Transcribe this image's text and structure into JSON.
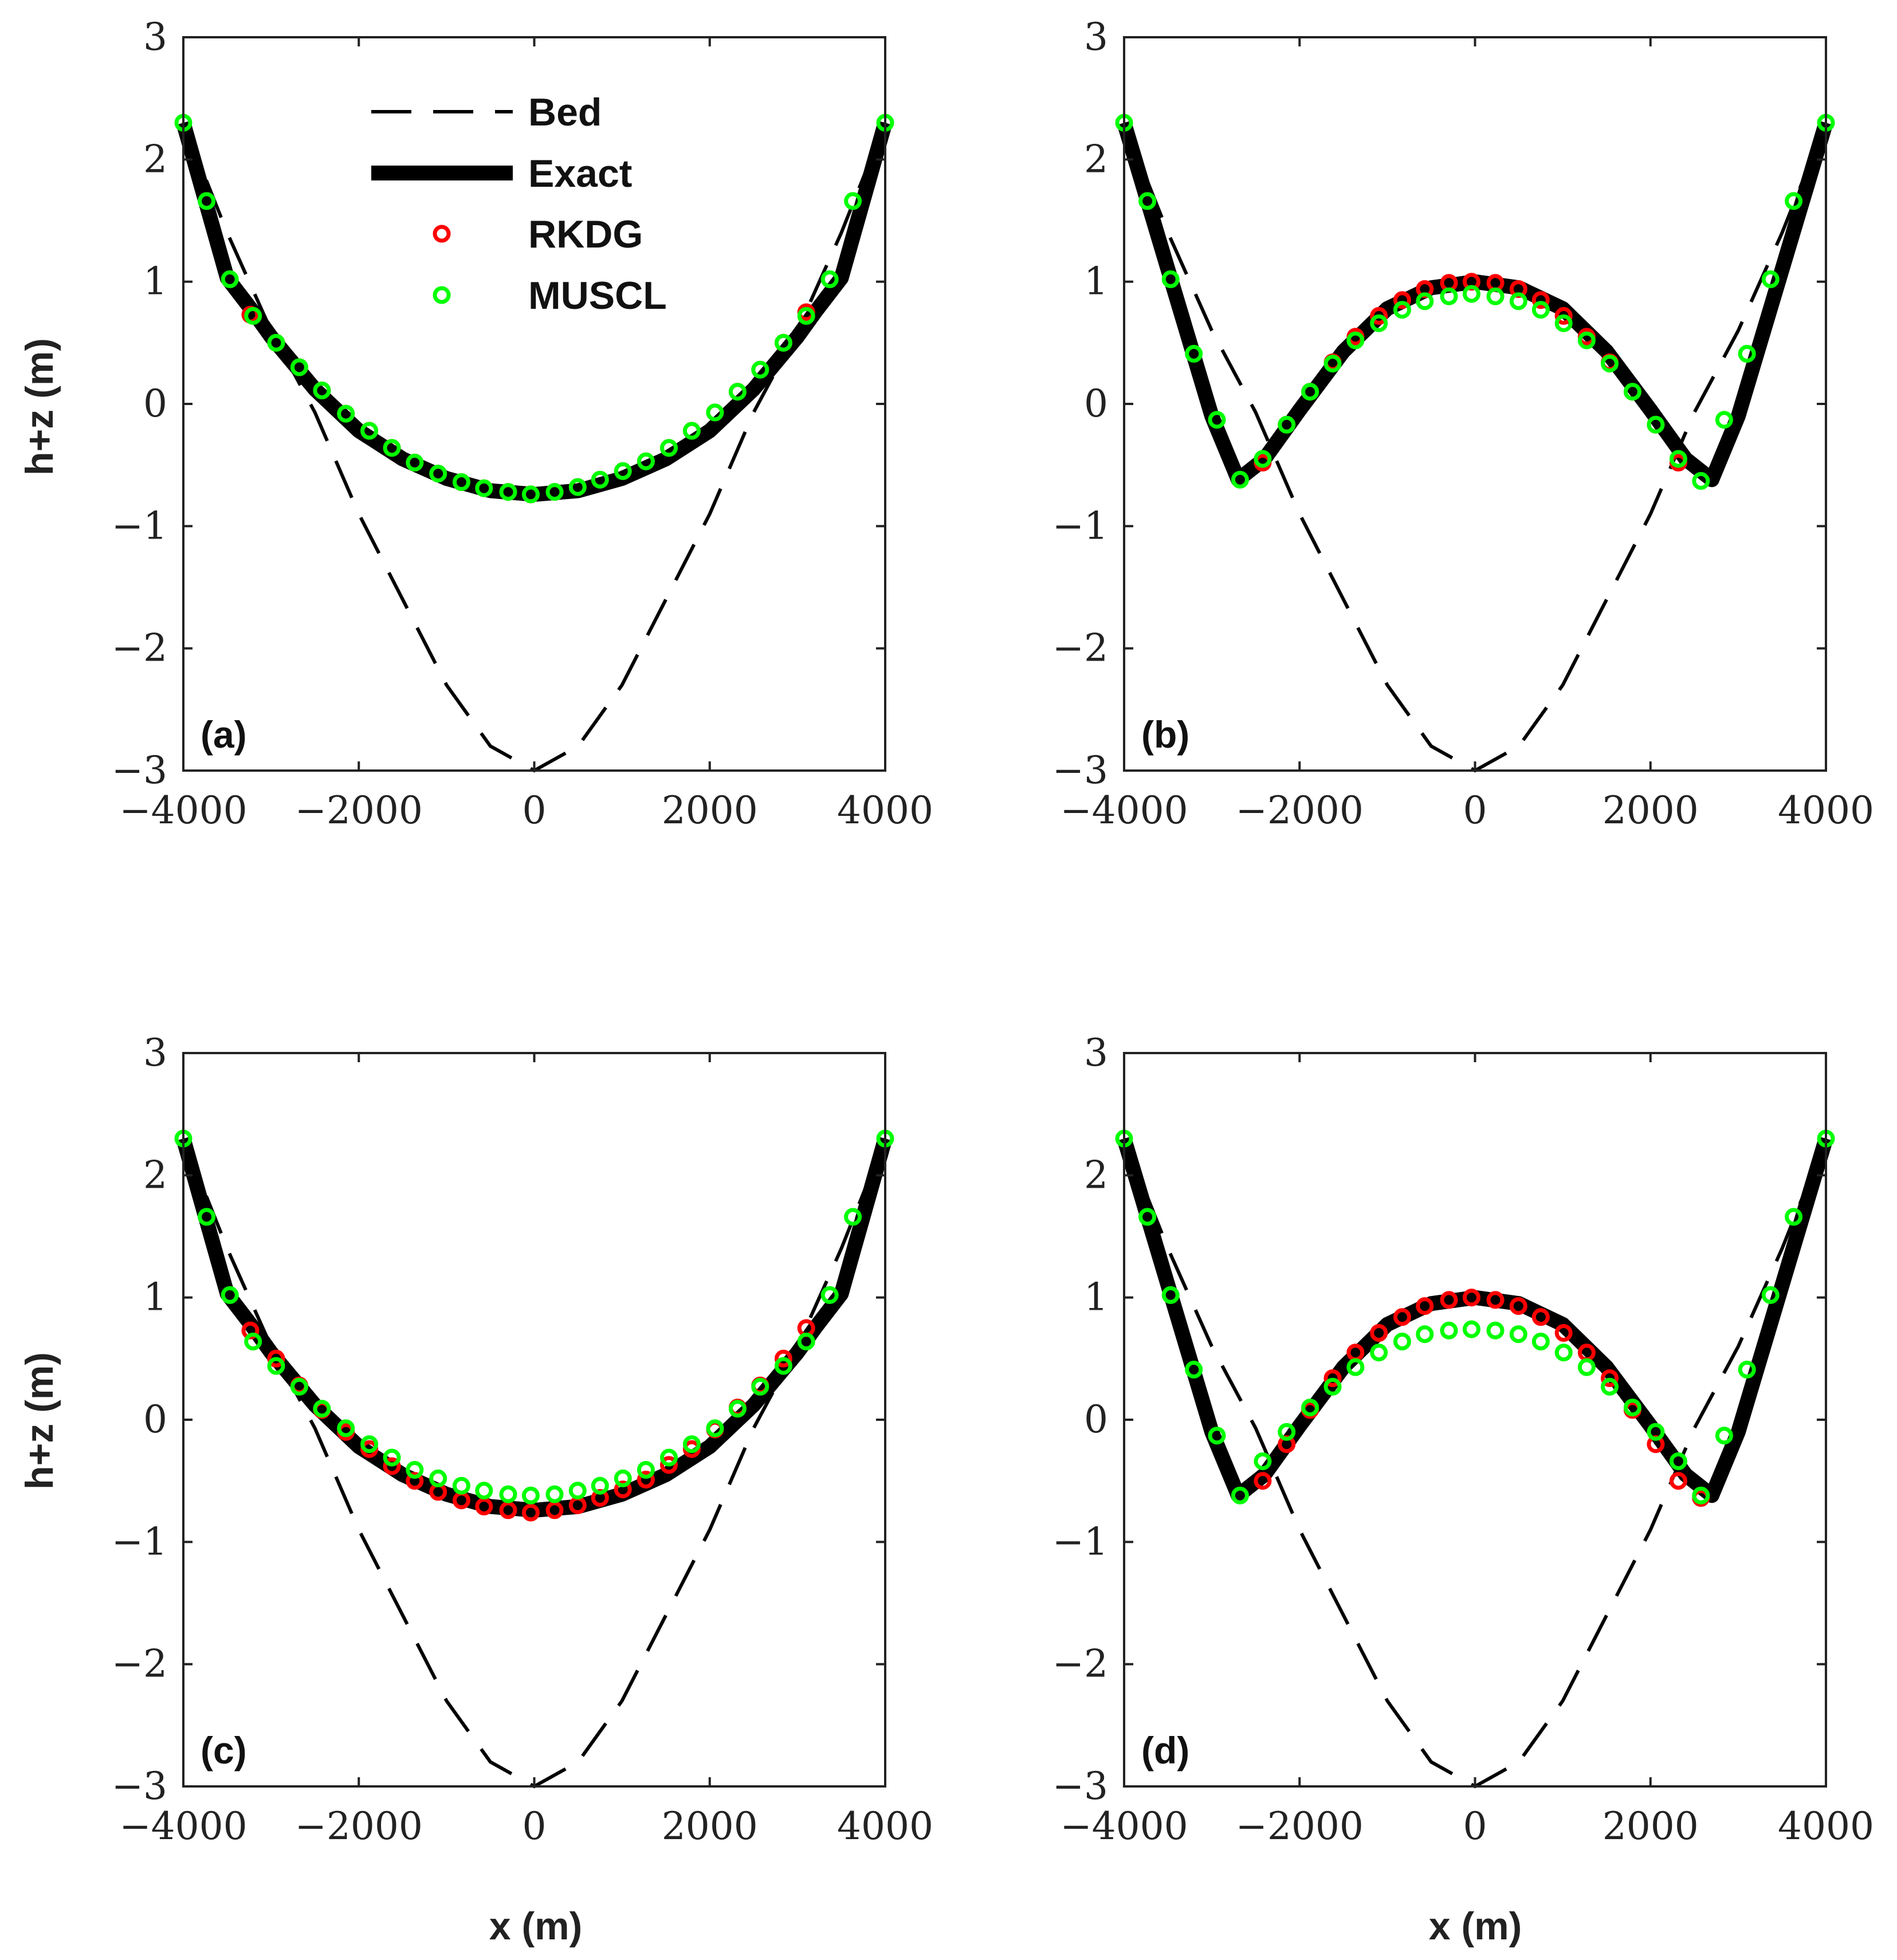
{
  "figure": {
    "xlabel": "x (m)",
    "ylabel": "h+z (m)"
  },
  "legend": {
    "items": [
      {
        "key": "bed",
        "label": "Bed"
      },
      {
        "key": "exact",
        "label": "Exact"
      },
      {
        "key": "rkdg",
        "label": "RKDG"
      },
      {
        "key": "muscl",
        "label": "MUSCL"
      }
    ]
  },
  "colors": {
    "bed": "#000000",
    "exact": "#000000",
    "rkdg": "#ff0000",
    "muscl": "#00ff00"
  },
  "chart_data": [
    {
      "type": "line",
      "panel": "(a)",
      "xlim": [
        -4000,
        4000
      ],
      "ylim": [
        -3,
        3
      ],
      "xticks": [
        -4000,
        -2000,
        0,
        2000,
        4000
      ],
      "yticks": [
        -3,
        -2,
        -1,
        0,
        1,
        2,
        3
      ],
      "series": [
        {
          "name": "Bed",
          "x": [
            -4000,
            -3500,
            -3000,
            -2500,
            -2000,
            -1500,
            -1000,
            -500,
            0,
            500,
            1000,
            1500,
            2000,
            2500,
            3000,
            3500,
            4000
          ],
          "y": [
            2.3,
            1.4,
            0.6,
            -0.07,
            -0.9,
            -1.6,
            -2.3,
            -2.8,
            -3.0,
            -2.8,
            -2.3,
            -1.6,
            -0.9,
            -0.07,
            0.6,
            1.4,
            2.3
          ]
        },
        {
          "name": "Exact",
          "x": [
            -4000,
            -3500,
            -3200,
            -3000,
            -2500,
            -2000,
            -1500,
            -1000,
            -500,
            0,
            500,
            1000,
            1500,
            2000,
            2500,
            3000,
            3200,
            3500,
            4000
          ],
          "y": [
            2.3,
            1.03,
            0.75,
            0.55,
            0.12,
            -0.22,
            -0.45,
            -0.61,
            -0.71,
            -0.74,
            -0.71,
            -0.61,
            -0.45,
            -0.22,
            0.12,
            0.55,
            0.75,
            1.03,
            2.3
          ]
        },
        {
          "name": "RKDG",
          "x": [
            -3236,
            -2942,
            -2678,
            -2420,
            -2147,
            -1880,
            -1623,
            -1363,
            -1096,
            -830,
            -573,
            -297,
            -40,
            232,
            495,
            750,
            1010,
            1273,
            1535,
            1795,
            2060,
            2318,
            2575,
            2840,
            3100
          ],
          "y": [
            0.73,
            0.5,
            0.3,
            0.11,
            -0.08,
            -0.22,
            -0.36,
            -0.48,
            -0.57,
            -0.64,
            -0.69,
            -0.72,
            -0.74,
            -0.72,
            -0.68,
            -0.62,
            -0.55,
            -0.47,
            -0.36,
            -0.22,
            -0.07,
            0.1,
            0.28,
            0.5,
            0.75
          ]
        },
        {
          "name": "MUSCL",
          "x": [
            -4000,
            -3735,
            -3470,
            -3205,
            -2942,
            -2678,
            -2420,
            -2147,
            -1880,
            -1623,
            -1363,
            -1096,
            -830,
            -573,
            -297,
            -40,
            232,
            495,
            750,
            1010,
            1273,
            1535,
            1795,
            2060,
            2318,
            2575,
            2840,
            3100,
            3368,
            3632,
            4000
          ],
          "y": [
            2.3,
            1.66,
            1.02,
            0.72,
            0.5,
            0.3,
            0.11,
            -0.08,
            -0.22,
            -0.36,
            -0.48,
            -0.57,
            -0.64,
            -0.69,
            -0.72,
            -0.74,
            -0.72,
            -0.68,
            -0.62,
            -0.55,
            -0.47,
            -0.36,
            -0.22,
            -0.07,
            0.1,
            0.28,
            0.5,
            0.72,
            1.02,
            1.66,
            2.3
          ]
        }
      ]
    },
    {
      "type": "line",
      "panel": "(b)",
      "xlim": [
        -4000,
        4000
      ],
      "ylim": [
        -3,
        3
      ],
      "xticks": [
        -4000,
        -2000,
        0,
        2000,
        4000
      ],
      "yticks": [
        -3,
        -2,
        -1,
        0,
        1,
        2,
        3
      ],
      "series": [
        {
          "name": "Bed",
          "x": [
            -4000,
            -3500,
            -3000,
            -2500,
            -2000,
            -1500,
            -1000,
            -500,
            0,
            500,
            1000,
            1500,
            2000,
            2500,
            3000,
            3500,
            4000
          ],
          "y": [
            2.3,
            1.4,
            0.6,
            -0.07,
            -0.9,
            -1.6,
            -2.3,
            -2.8,
            -3.0,
            -2.8,
            -2.3,
            -1.6,
            -0.9,
            -0.07,
            0.6,
            1.4,
            2.3
          ]
        },
        {
          "name": "Exact",
          "x": [
            -4000,
            -3000,
            -2700,
            -2400,
            -2000,
            -1500,
            -1000,
            -500,
            0,
            500,
            1000,
            1500,
            2000,
            2400,
            2700,
            3000,
            4000
          ],
          "y": [
            2.3,
            -0.1,
            -0.62,
            -0.45,
            -0.05,
            0.43,
            0.78,
            0.95,
            1.0,
            0.95,
            0.78,
            0.43,
            -0.05,
            -0.45,
            -0.62,
            -0.1,
            2.3
          ]
        },
        {
          "name": "RKDG",
          "x": [
            -2420,
            -2147,
            -1880,
            -1623,
            -1363,
            -1096,
            -830,
            -573,
            -297,
            -40,
            232,
            495,
            750,
            1010,
            1273,
            1535,
            1795,
            2060,
            2318
          ],
          "y": [
            -0.48,
            -0.17,
            0.1,
            0.34,
            0.55,
            0.72,
            0.85,
            0.94,
            0.99,
            1.0,
            0.99,
            0.94,
            0.85,
            0.72,
            0.55,
            0.34,
            0.1,
            -0.17,
            -0.48
          ]
        },
        {
          "name": "MUSCL",
          "x": [
            -4000,
            -3735,
            -3470,
            -3205,
            -2942,
            -2678,
            -2420,
            -2147,
            -1880,
            -1623,
            -1363,
            -1096,
            -830,
            -573,
            -297,
            -40,
            232,
            495,
            750,
            1010,
            1273,
            1535,
            1795,
            2060,
            2318,
            2575,
            2840,
            3100,
            3368,
            3632,
            4000
          ],
          "y": [
            2.3,
            1.66,
            1.02,
            0.41,
            -0.13,
            -0.62,
            -0.45,
            -0.17,
            0.1,
            0.33,
            0.52,
            0.66,
            0.77,
            0.84,
            0.88,
            0.9,
            0.88,
            0.84,
            0.77,
            0.66,
            0.52,
            0.33,
            0.1,
            -0.17,
            -0.45,
            -0.63,
            -0.13,
            0.41,
            1.02,
            1.66,
            2.3
          ]
        }
      ]
    },
    {
      "type": "line",
      "panel": "(c)",
      "xlim": [
        -4000,
        4000
      ],
      "ylim": [
        -3,
        3
      ],
      "xticks": [
        -4000,
        -2000,
        0,
        2000,
        4000
      ],
      "yticks": [
        -3,
        -2,
        -1,
        0,
        1,
        2,
        3
      ],
      "series": [
        {
          "name": "Bed",
          "x": [
            -4000,
            -3500,
            -3000,
            -2500,
            -2000,
            -1500,
            -1000,
            -500,
            0,
            500,
            1000,
            1500,
            2000,
            2500,
            3000,
            3500,
            4000
          ],
          "y": [
            2.3,
            1.4,
            0.6,
            -0.07,
            -0.9,
            -1.6,
            -2.3,
            -2.8,
            -3.0,
            -2.8,
            -2.3,
            -1.6,
            -0.9,
            -0.07,
            0.6,
            1.4,
            2.3
          ]
        },
        {
          "name": "Exact",
          "x": [
            -4000,
            -3500,
            -3200,
            -3000,
            -2500,
            -2000,
            -1500,
            -1000,
            -500,
            0,
            500,
            1000,
            1500,
            2000,
            2500,
            3000,
            3200,
            3500,
            4000
          ],
          "y": [
            2.3,
            1.03,
            0.75,
            0.55,
            0.12,
            -0.22,
            -0.45,
            -0.61,
            -0.71,
            -0.74,
            -0.71,
            -0.61,
            -0.45,
            -0.22,
            0.12,
            0.55,
            0.75,
            1.03,
            2.3
          ]
        },
        {
          "name": "RKDG",
          "x": [
            -3236,
            -2942,
            -2678,
            -2420,
            -2147,
            -1880,
            -1623,
            -1363,
            -1096,
            -830,
            -573,
            -297,
            -40,
            232,
            495,
            750,
            1010,
            1273,
            1535,
            1795,
            2060,
            2318,
            2575,
            2840,
            3100
          ],
          "y": [
            0.73,
            0.5,
            0.28,
            0.08,
            -0.1,
            -0.24,
            -0.38,
            -0.5,
            -0.59,
            -0.66,
            -0.71,
            -0.74,
            -0.76,
            -0.74,
            -0.7,
            -0.64,
            -0.57,
            -0.49,
            -0.37,
            -0.24,
            -0.08,
            0.1,
            0.28,
            0.5,
            0.75
          ]
        },
        {
          "name": "MUSCL",
          "x": [
            -4000,
            -3735,
            -3470,
            -3205,
            -2942,
            -2678,
            -2420,
            -2147,
            -1880,
            -1623,
            -1363,
            -1096,
            -830,
            -573,
            -297,
            -40,
            232,
            495,
            750,
            1010,
            1273,
            1535,
            1795,
            2060,
            2318,
            2575,
            2840,
            3100,
            3368,
            3632,
            4000
          ],
          "y": [
            2.3,
            1.66,
            1.02,
            0.64,
            0.44,
            0.27,
            0.09,
            -0.07,
            -0.2,
            -0.31,
            -0.41,
            -0.48,
            -0.54,
            -0.58,
            -0.61,
            -0.62,
            -0.61,
            -0.58,
            -0.54,
            -0.48,
            -0.41,
            -0.31,
            -0.2,
            -0.07,
            0.09,
            0.27,
            0.44,
            0.64,
            1.02,
            1.66,
            2.3
          ]
        }
      ]
    },
    {
      "type": "line",
      "panel": "(d)",
      "xlim": [
        -4000,
        4000
      ],
      "ylim": [
        -3,
        3
      ],
      "xticks": [
        -4000,
        -2000,
        0,
        2000,
        4000
      ],
      "yticks": [
        -3,
        -2,
        -1,
        0,
        1,
        2,
        3
      ],
      "series": [
        {
          "name": "Bed",
          "x": [
            -4000,
            -3500,
            -3000,
            -2500,
            -2000,
            -1500,
            -1000,
            -500,
            0,
            500,
            1000,
            1500,
            2000,
            2500,
            3000,
            3500,
            4000
          ],
          "y": [
            2.3,
            1.4,
            0.6,
            -0.07,
            -0.9,
            -1.6,
            -2.3,
            -2.8,
            -3.0,
            -2.8,
            -2.3,
            -1.6,
            -0.9,
            -0.07,
            0.6,
            1.4,
            2.3
          ]
        },
        {
          "name": "Exact",
          "x": [
            -4000,
            -3000,
            -2700,
            -2400,
            -2000,
            -1500,
            -1000,
            -500,
            0,
            500,
            1000,
            1500,
            2000,
            2400,
            2700,
            3000,
            4000
          ],
          "y": [
            2.3,
            -0.1,
            -0.62,
            -0.45,
            -0.05,
            0.43,
            0.78,
            0.95,
            1.0,
            0.95,
            0.78,
            0.43,
            -0.05,
            -0.45,
            -0.62,
            -0.1,
            2.3
          ]
        },
        {
          "name": "RKDG",
          "x": [
            -2420,
            -2147,
            -1880,
            -1623,
            -1363,
            -1096,
            -830,
            -573,
            -297,
            -40,
            232,
            495,
            750,
            1010,
            1273,
            1535,
            1795,
            2060,
            2318,
            2575
          ],
          "y": [
            -0.5,
            -0.2,
            0.08,
            0.34,
            0.55,
            0.71,
            0.84,
            0.93,
            0.98,
            1.0,
            0.98,
            0.93,
            0.84,
            0.71,
            0.55,
            0.34,
            0.08,
            -0.2,
            -0.5,
            -0.64
          ]
        },
        {
          "name": "MUSCL",
          "x": [
            -4000,
            -3735,
            -3470,
            -3205,
            -2942,
            -2678,
            -2420,
            -2147,
            -1880,
            -1623,
            -1363,
            -1096,
            -830,
            -573,
            -297,
            -40,
            232,
            495,
            750,
            1010,
            1273,
            1535,
            1795,
            2060,
            2318,
            2575,
            2840,
            3100,
            3368,
            3632,
            4000
          ],
          "y": [
            2.3,
            1.66,
            1.02,
            0.41,
            -0.13,
            -0.62,
            -0.34,
            -0.1,
            0.1,
            0.27,
            0.43,
            0.55,
            0.64,
            0.7,
            0.73,
            0.74,
            0.73,
            0.7,
            0.64,
            0.55,
            0.43,
            0.27,
            0.1,
            -0.1,
            -0.34,
            -0.62,
            -0.13,
            0.41,
            1.02,
            1.66,
            2.3
          ]
        }
      ]
    }
  ]
}
